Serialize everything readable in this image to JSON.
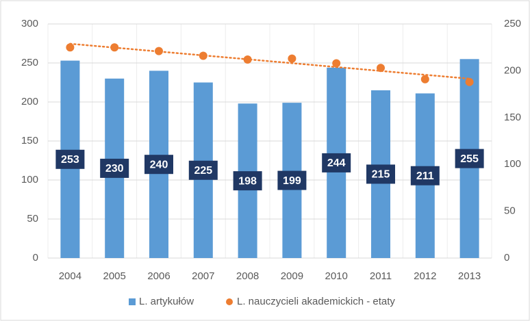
{
  "chart_data": {
    "type": "bar_dot",
    "categories": [
      "2004",
      "2005",
      "2006",
      "2007",
      "2008",
      "2009",
      "2010",
      "2011",
      "2012",
      "2013"
    ],
    "series": [
      {
        "name": "L. artykułów",
        "color": "#5b9bd5",
        "values": [
          253,
          230,
          240,
          225,
          198,
          199,
          244,
          215,
          211,
          255
        ]
      },
      {
        "name": "L. nauczycieli akademickich - etaty",
        "color": "#ed7d31",
        "axis": "y2",
        "values": [
          225,
          225,
          221,
          216,
          212,
          213,
          208,
          203,
          191,
          188
        ]
      }
    ],
    "ylim": [
      0,
      300
    ],
    "yticks": [
      0,
      50,
      100,
      150,
      200,
      250,
      300
    ],
    "y2lim": [
      0,
      250
    ],
    "y2ticks": [
      0,
      50,
      100,
      150,
      200,
      250
    ],
    "grid": true,
    "trendline": true,
    "legend": "bottom",
    "label_color": "#203864"
  }
}
